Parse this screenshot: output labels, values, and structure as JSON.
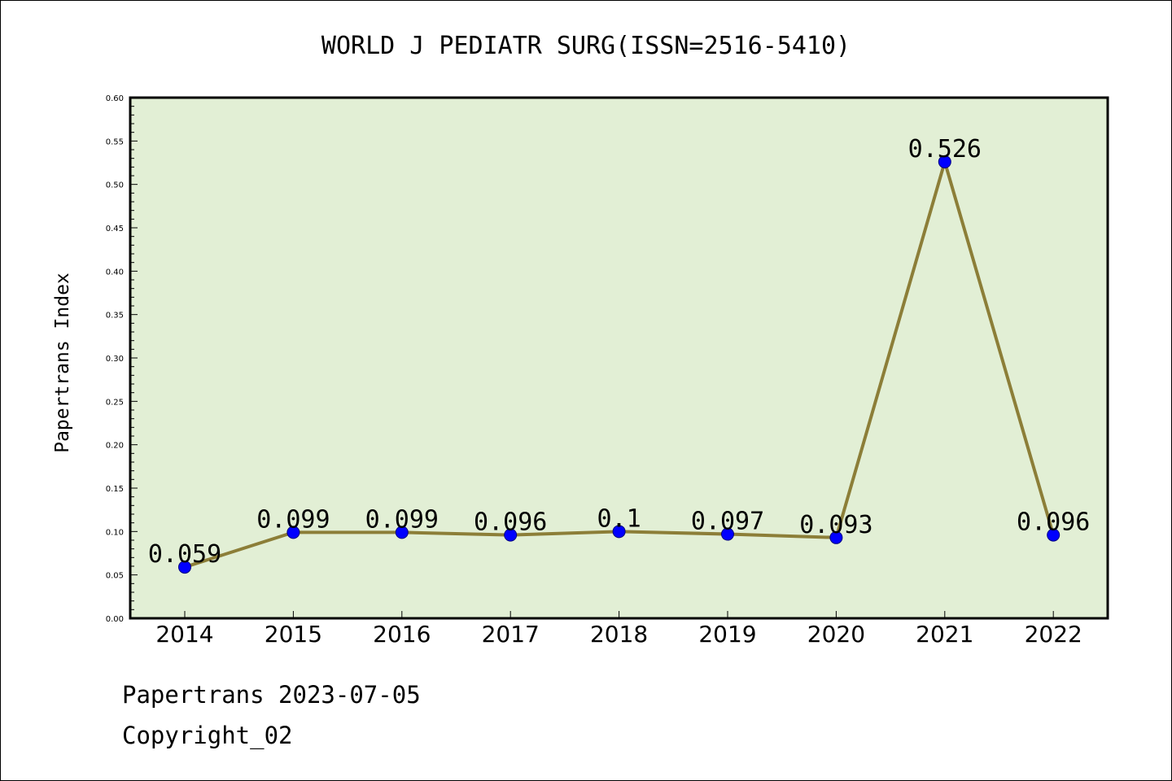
{
  "chart_data": {
    "type": "line",
    "title": "WORLD J PEDIATR SURG(ISSN=2516-5410)",
    "xlabel": "",
    "ylabel": "Papertrans Index",
    "categories": [
      "2014",
      "2015",
      "2016",
      "2017",
      "2018",
      "2019",
      "2020",
      "2021",
      "2022"
    ],
    "series": [
      {
        "values": [
          0.059,
          0.099,
          0.099,
          0.096,
          0.1,
          0.097,
          0.093,
          0.526,
          0.096
        ],
        "labels": [
          "0.059",
          "0.099",
          "0.099",
          "0.096",
          "0.1",
          "0.097",
          "0.093",
          "0.526",
          "0.096"
        ]
      }
    ],
    "ylim": [
      0,
      0.6
    ],
    "yticks": [
      "0.00",
      "0.05",
      "0.10",
      "0.15",
      "0.20",
      "0.25",
      "0.30",
      "0.35",
      "0.40",
      "0.45",
      "0.50",
      "0.55",
      "0.60"
    ],
    "grid": false,
    "colors": {
      "plot_background": "#e2efd5",
      "line": "#8c7e38",
      "marker": "#0000ff",
      "axis": "#000000"
    }
  },
  "footer": {
    "source": "Papertrans 2023-07-05",
    "copyright": "Copyright_02"
  }
}
